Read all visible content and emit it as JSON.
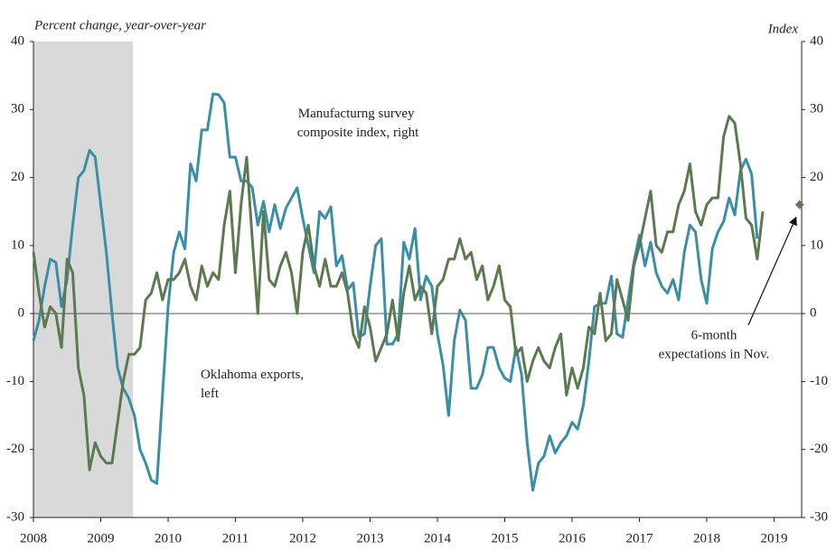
{
  "chart_data": {
    "type": "line",
    "y_label": "Percent change, year-over-year",
    "y2_label": "Index",
    "x": [
      2008,
      2008.083,
      2008.167,
      2008.25,
      2008.333,
      2008.417,
      2008.5,
      2008.583,
      2008.667,
      2008.75,
      2008.833,
      2008.917,
      2009,
      2009.083,
      2009.167,
      2009.25,
      2009.333,
      2009.417,
      2009.5,
      2009.583,
      2009.667,
      2009.75,
      2009.833,
      2009.917,
      2010,
      2010.083,
      2010.167,
      2010.25,
      2010.333,
      2010.417,
      2010.5,
      2010.583,
      2010.667,
      2010.75,
      2010.833,
      2010.917,
      2011,
      2011.083,
      2011.167,
      2011.25,
      2011.333,
      2011.417,
      2011.5,
      2011.583,
      2011.667,
      2011.75,
      2011.833,
      2011.917,
      2012,
      2012.083,
      2012.167,
      2012.25,
      2012.333,
      2012.417,
      2012.5,
      2012.583,
      2012.667,
      2012.75,
      2012.833,
      2012.917,
      2013,
      2013.083,
      2013.167,
      2013.25,
      2013.333,
      2013.417,
      2013.5,
      2013.583,
      2013.667,
      2013.75,
      2013.833,
      2013.917,
      2014,
      2014.083,
      2014.167,
      2014.25,
      2014.333,
      2014.417,
      2014.5,
      2014.583,
      2014.667,
      2014.75,
      2014.833,
      2014.917,
      2015,
      2015.083,
      2015.167,
      2015.25,
      2015.333,
      2015.417,
      2015.5,
      2015.583,
      2015.667,
      2015.75,
      2015.833,
      2015.917,
      2016,
      2016.083,
      2016.167,
      2016.25,
      2016.333,
      2016.417,
      2016.5,
      2016.583,
      2016.667,
      2016.75,
      2016.833,
      2016.917,
      2017,
      2017.083,
      2017.167,
      2017.25,
      2017.333,
      2017.417,
      2017.5,
      2017.583,
      2017.667,
      2017.75,
      2017.833,
      2017.917,
      2018,
      2018.083,
      2018.167,
      2018.25,
      2018.333,
      2018.417,
      2018.5,
      2018.583,
      2018.667,
      2018.75,
      2018.833
    ],
    "xlim": [
      2008,
      2019.41
    ],
    "xticks": [
      2008,
      2009,
      2010,
      2011,
      2012,
      2013,
      2014,
      2015,
      2016,
      2017,
      2018,
      2019
    ],
    "ylim": [
      -30,
      40
    ],
    "yticks": [
      -30,
      -20,
      -10,
      0,
      10,
      20,
      30,
      40
    ],
    "y2lim": [
      -30,
      40
    ],
    "y2ticks": [
      -30,
      -20,
      -10,
      0,
      10,
      20,
      30,
      40
    ],
    "shaded_region": [
      2008,
      2009.48
    ],
    "shade_color": "#d9d9d9",
    "series": [
      {
        "name": "Oklahoma exports, left",
        "color": "#3a8fa6",
        "values": [
          -4,
          -1,
          4,
          8,
          7.5,
          1,
          5,
          13,
          20,
          21,
          24,
          23,
          16,
          9,
          0,
          -8,
          -11,
          -12.5,
          -15,
          -20,
          -22,
          -24.5,
          -25,
          -12,
          1,
          9,
          12,
          9.5,
          22,
          19.5,
          27,
          27,
          32.3,
          32.2,
          31,
          23,
          23,
          19.5,
          19.5,
          18.5,
          13,
          16.5,
          12,
          16,
          12.5,
          15.5,
          17,
          18.5,
          14,
          10,
          6,
          15,
          14,
          15.7,
          7,
          8.5,
          3.5,
          4.5,
          -3.5,
          -3,
          4,
          10,
          11,
          -4.5,
          -4.5,
          -3,
          10.5,
          8,
          12.5,
          2,
          5.5,
          4,
          -3,
          -7.5,
          -15,
          -4,
          0.5,
          -1,
          -11,
          -11,
          -9,
          -5,
          -5,
          -8,
          -9.5,
          -10,
          -5,
          -9,
          -19,
          -26,
          -22,
          -21,
          -18,
          -20.5,
          -19,
          -18,
          -16,
          -17,
          -13.5,
          -7,
          1,
          1.5,
          1.5,
          5.5,
          -3,
          -3.5,
          2,
          7.5,
          11.5,
          7,
          10.5,
          6,
          4,
          3,
          5,
          2,
          9,
          13,
          12,
          5,
          1.5,
          9.5,
          12,
          13.5,
          17,
          14.5,
          21,
          22.7,
          20.5,
          11,
          null
        ]
      },
      {
        "name": "Manufacturng survey composite index, right",
        "color": "#5b7a4f",
        "axis": "y2",
        "values": [
          9,
          3,
          -2,
          1,
          0,
          -5,
          8,
          6,
          -8,
          -12,
          -23,
          -19,
          -21,
          -22,
          -22,
          -16,
          -10,
          -6,
          -6,
          -5,
          2,
          3,
          6,
          2,
          5,
          5,
          6,
          8,
          4,
          2,
          7,
          4,
          6,
          5,
          13,
          18,
          6,
          16,
          23,
          11,
          0,
          15,
          5,
          4,
          7,
          9,
          6,
          0,
          9,
          13,
          7,
          4,
          8,
          4,
          4,
          6,
          3,
          -3,
          -5,
          1,
          -2,
          -7,
          -5,
          -3,
          2,
          -4,
          3,
          7,
          2,
          4,
          3,
          -3,
          4,
          5,
          8,
          8,
          11,
          8,
          9,
          5,
          7,
          2,
          4,
          7,
          2,
          1,
          -6,
          -5,
          -10,
          -7,
          -5,
          -7,
          -8,
          -5,
          -3,
          -12,
          -8,
          -11,
          -8,
          -2,
          -3,
          3,
          -4,
          -3,
          5,
          2,
          -1,
          7,
          10,
          14,
          18,
          10,
          9,
          12,
          12,
          16,
          18,
          22,
          15,
          13,
          16,
          17,
          17,
          26,
          29,
          28,
          22,
          14,
          13,
          8,
          15
        ]
      }
    ],
    "annotation": {
      "lines": [
        "6-month",
        "expectations in Nov."
      ],
      "x": 2019.38,
      "value": 16,
      "color": "#5b7a4f"
    }
  }
}
